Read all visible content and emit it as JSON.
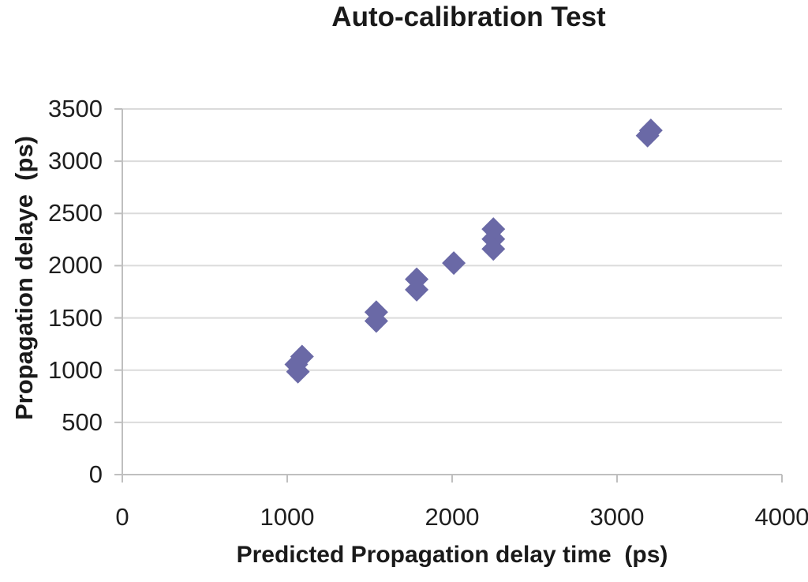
{
  "chart_data": {
    "type": "scatter",
    "title": "Auto-calibration Test",
    "xlabel": "Predicted Propagation delay time  (ps)",
    "ylabel": "Propagation delaye  (ps)",
    "xlim": [
      0,
      4000
    ],
    "ylim": [
      0,
      3500
    ],
    "xticks": [
      0,
      1000,
      2000,
      3000,
      4000
    ],
    "yticks": [
      0,
      500,
      1000,
      1500,
      2000,
      2500,
      3000,
      3500
    ],
    "grid": "horizontal-only",
    "legend": "none",
    "marker": "diamond",
    "points": [
      {
        "x": 1090,
        "y": 1130
      },
      {
        "x": 1055,
        "y": 1055
      },
      {
        "x": 1065,
        "y": 985
      },
      {
        "x": 1540,
        "y": 1555
      },
      {
        "x": 1540,
        "y": 1470
      },
      {
        "x": 1785,
        "y": 1870
      },
      {
        "x": 1785,
        "y": 1770
      },
      {
        "x": 2010,
        "y": 2025
      },
      {
        "x": 2250,
        "y": 2350
      },
      {
        "x": 2250,
        "y": 2255
      },
      {
        "x": 2250,
        "y": 2160
      },
      {
        "x": 3205,
        "y": 3295
      },
      {
        "x": 3185,
        "y": 3245
      }
    ]
  },
  "colors": {
    "marker": "#6A69A6",
    "gridline": "#DBDBDB",
    "axis": "#BFBFBF",
    "tick_text": "#1f1f1f",
    "label_text": "#1a1a1a",
    "background": "#ffffff"
  }
}
